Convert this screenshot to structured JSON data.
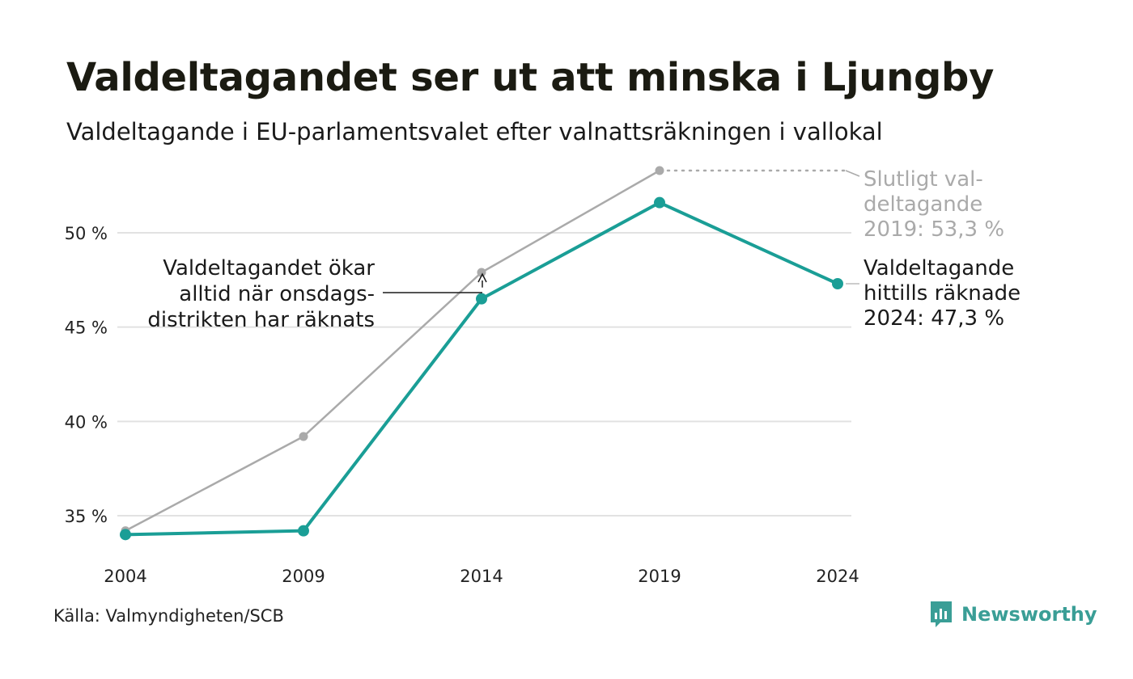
{
  "header": {
    "title": "Valdeltagandet ser ut att minska i Ljungby",
    "subtitle": "Valdeltagande i EU-parlamentsvalet efter valnattsräkningen i vallokal"
  },
  "footer": {
    "source": "Källa: Valmyndigheten/SCB",
    "logo_text": "Newsworthy"
  },
  "colors": {
    "current": "#1a9e96",
    "final": "#aaaaaa",
    "grid": "#e2e2e2",
    "annotation_final": "#aaaaaa",
    "annotation_current": "#1a1a1a"
  },
  "chart_data": {
    "type": "line",
    "x": [
      2004,
      2009,
      2014,
      2019,
      2024
    ],
    "y_ticks": [
      35,
      40,
      45,
      50
    ],
    "y_tick_labels": [
      "35 %",
      "40 %",
      "45 %",
      "50 %"
    ],
    "x_tick_labels": [
      "2004",
      "2009",
      "2014",
      "2019",
      "2024"
    ],
    "ylim": [
      33.2,
      54.2
    ],
    "grid": true,
    "series": [
      {
        "key": "final",
        "values": [
          34.2,
          39.2,
          47.9,
          53.3,
          null
        ]
      },
      {
        "key": "current",
        "values": [
          34.0,
          34.2,
          46.5,
          51.6,
          47.3
        ]
      }
    ],
    "annotations": {
      "final_2019": [
        "Slutligt val-",
        "deltagande",
        "2019: 53,3 %"
      ],
      "current_2024": [
        "Valdeltagande",
        "hittills räknade",
        "2024: 47,3 %"
      ],
      "gap_note": [
        "Valdeltagandet ökar",
        "alltid när onsdags-",
        "distrikten har räknats"
      ]
    }
  }
}
